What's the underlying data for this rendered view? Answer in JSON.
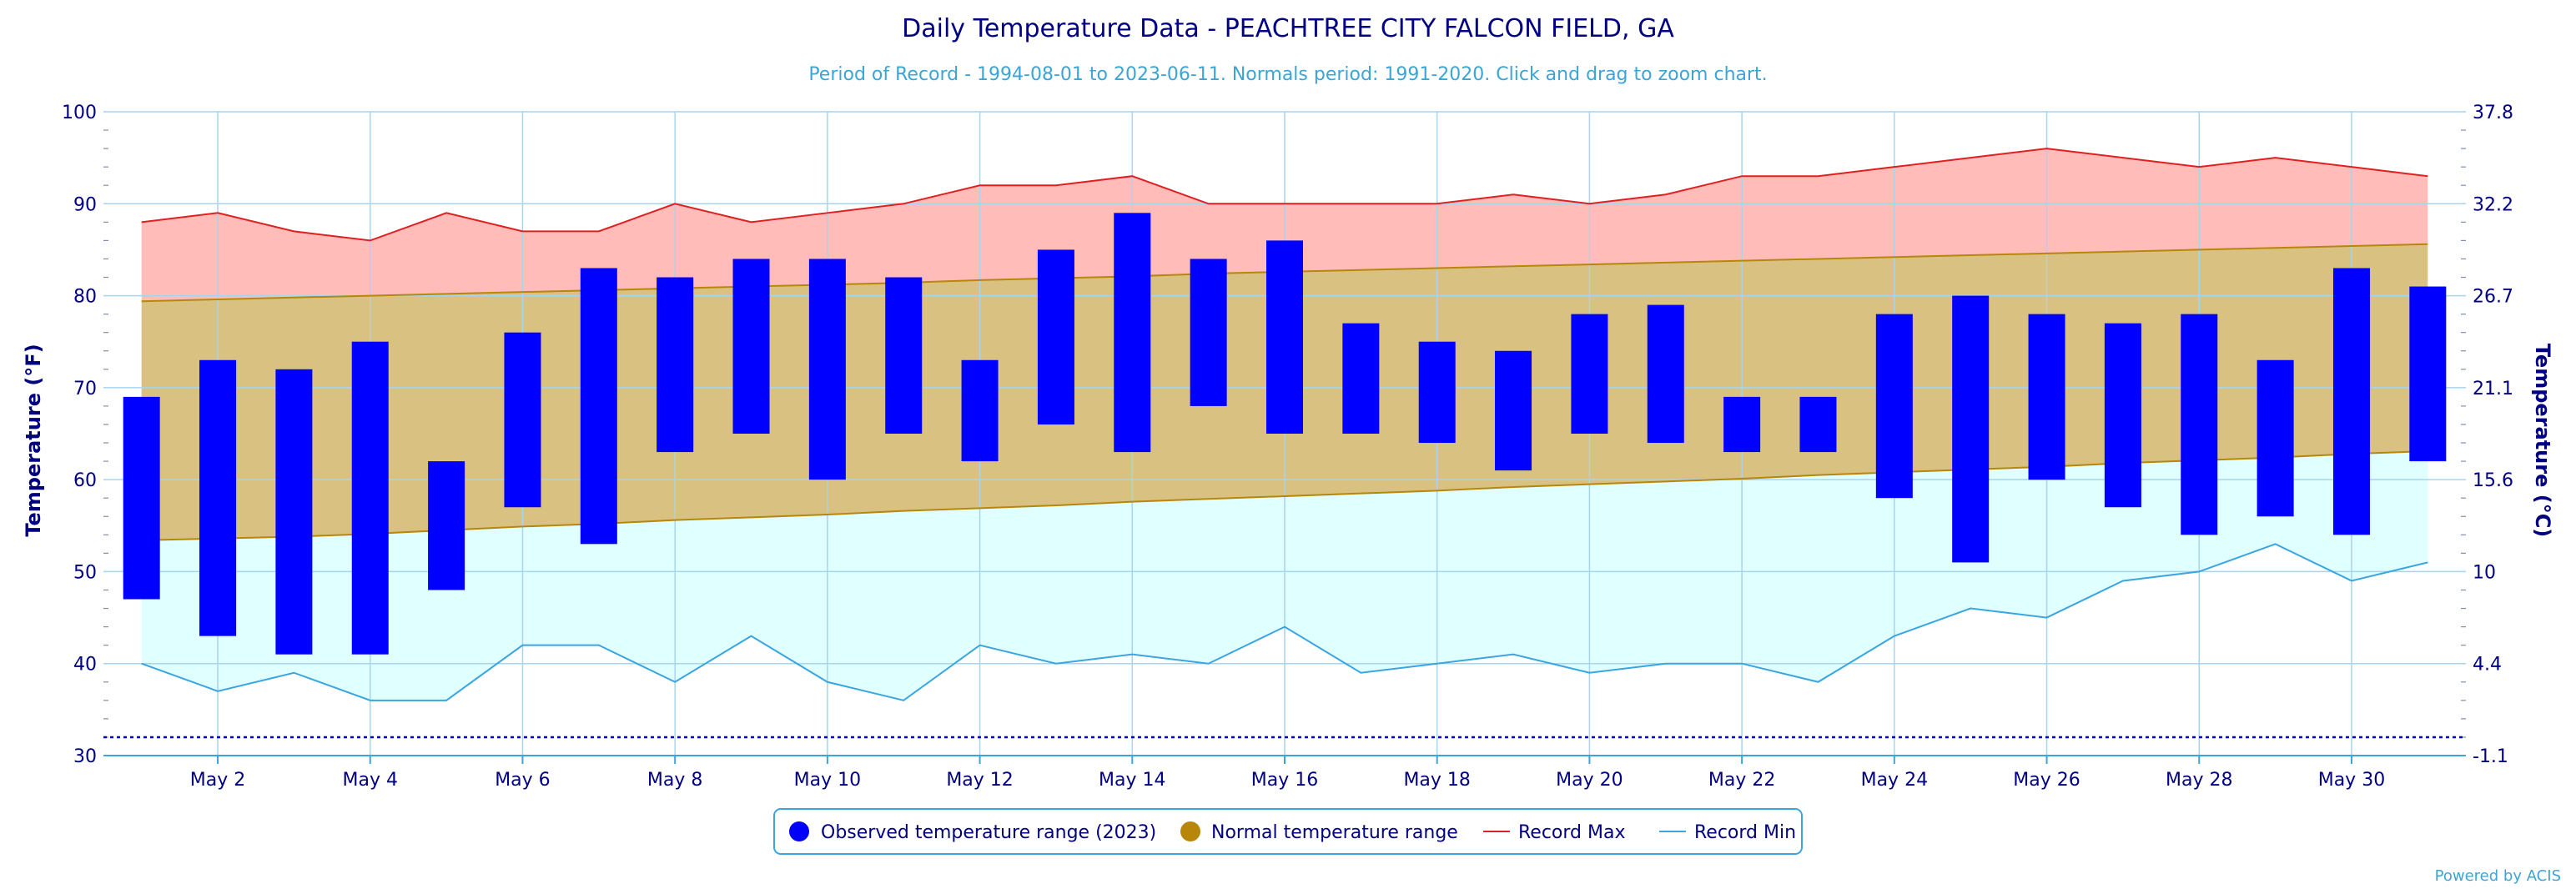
{
  "chart_data": {
    "type": "bar",
    "title": "Daily Temperature Data - PEACHTREE CITY FALCON FIELD, GA",
    "subtitle": "Period of Record - 1994-08-01 to 2023-06-11. Normals period: 1991-2020. Click and drag to zoom chart.",
    "ylabel_left": "Temperature (°F)",
    "ylabel_right": "Temperature (°C)",
    "ylim": [
      30,
      100
    ],
    "yticks_left": [
      30,
      40,
      50,
      60,
      70,
      80,
      90,
      100
    ],
    "yticks_right": [
      "-1.1",
      "4.4",
      "10",
      "15.6",
      "21.1",
      "26.7",
      "32.2",
      "37.8"
    ],
    "x": [
      1,
      2,
      3,
      4,
      5,
      6,
      7,
      8,
      9,
      10,
      11,
      12,
      13,
      14,
      15,
      16,
      17,
      18,
      19,
      20,
      21,
      22,
      23,
      24,
      25,
      26,
      27,
      28,
      29,
      30,
      31
    ],
    "xtick_labels": [
      "May 2",
      "May 4",
      "May 6",
      "May 8",
      "May 10",
      "May 12",
      "May 14",
      "May 16",
      "May 18",
      "May 20",
      "May 22",
      "May 24",
      "May 26",
      "May 28",
      "May 30"
    ],
    "xtick_days": [
      2,
      4,
      6,
      8,
      10,
      12,
      14,
      16,
      18,
      20,
      22,
      24,
      26,
      28,
      30
    ],
    "freeze_line_f": 32,
    "colors": {
      "observed": "#0000ff",
      "normal": "#d9c182",
      "normal_line": "#b8860b",
      "record_max_fill": "#ffbcb8",
      "record_max_line": "#e02020",
      "record_min_fill": "#e0ffff",
      "record_min_line": "#3aa5e0",
      "grid": "#a8d4ec",
      "freeze": "#0000cd"
    },
    "series": [
      {
        "name": "Observed temperature range (2023)",
        "type": "range-bar",
        "low": [
          47,
          43,
          41,
          41,
          48,
          57,
          53,
          63,
          65,
          60,
          65,
          62,
          66,
          63,
          68,
          65,
          65,
          64,
          61,
          65,
          64,
          63,
          63,
          58,
          51,
          60,
          57,
          54,
          56,
          54,
          62
        ],
        "high": [
          69,
          73,
          72,
          75,
          62,
          76,
          83,
          82,
          84,
          84,
          82,
          73,
          85,
          89,
          84,
          86,
          77,
          75,
          74,
          78,
          79,
          69,
          69,
          78,
          80,
          78,
          77,
          78,
          73,
          83,
          81
        ]
      },
      {
        "name": "Normal temperature range",
        "type": "range-area",
        "low": [
          53.4,
          53.6,
          53.8,
          54.1,
          54.5,
          54.9,
          55.2,
          55.6,
          55.9,
          56.2,
          56.6,
          56.9,
          57.2,
          57.6,
          57.9,
          58.2,
          58.5,
          58.8,
          59.2,
          59.5,
          59.8,
          60.1,
          60.5,
          60.8,
          61.1,
          61.4,
          61.8,
          62.1,
          62.4,
          62.8,
          63.1
        ],
        "high": [
          79.4,
          79.6,
          79.8,
          80.0,
          80.2,
          80.4,
          80.6,
          80.8,
          81.0,
          81.2,
          81.4,
          81.7,
          81.9,
          82.1,
          82.4,
          82.6,
          82.8,
          83.0,
          83.2,
          83.4,
          83.6,
          83.8,
          84.0,
          84.2,
          84.4,
          84.6,
          84.8,
          85.0,
          85.2,
          85.4,
          85.6
        ]
      },
      {
        "name": "Record Max",
        "type": "line",
        "values": [
          88,
          89,
          87,
          86,
          89,
          87,
          87,
          90,
          88,
          89,
          90,
          92,
          92,
          93,
          90,
          90,
          90,
          90,
          91,
          90,
          91,
          93,
          93,
          94,
          95,
          96,
          95,
          94,
          95,
          94,
          93
        ]
      },
      {
        "name": "Record Min",
        "type": "line",
        "values": [
          40,
          37,
          39,
          36,
          36,
          42,
          42,
          38,
          43,
          38,
          36,
          42,
          40,
          41,
          40,
          44,
          39,
          40,
          41,
          39,
          40,
          40,
          38,
          43,
          46,
          45,
          49,
          50,
          53,
          49,
          51
        ]
      }
    ],
    "grid": true,
    "legend_position": "bottom-center",
    "credit": "Powered by ACIS"
  }
}
